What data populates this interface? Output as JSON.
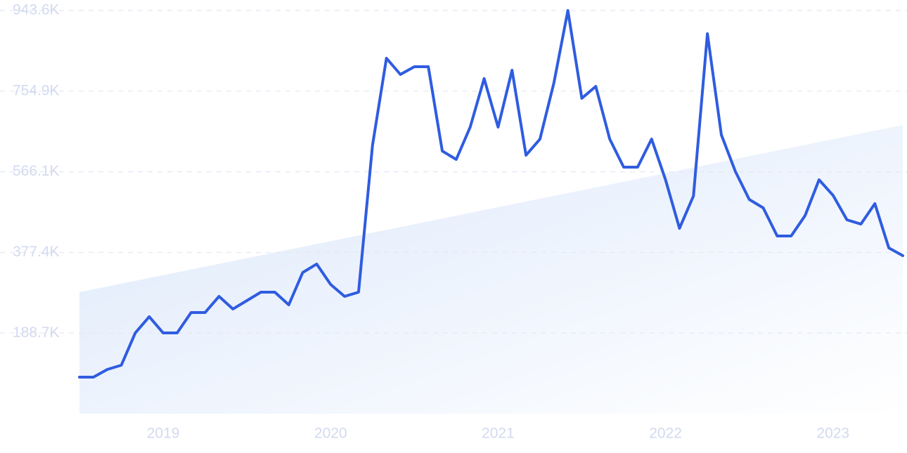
{
  "chart_data": {
    "type": "line",
    "x": [
      2018.5,
      2018.5833,
      2018.6667,
      2018.75,
      2018.8333,
      2018.9167,
      2019,
      2019.0833,
      2019.1667,
      2019.25,
      2019.3333,
      2019.4167,
      2019.5,
      2019.5833,
      2019.6667,
      2019.75,
      2019.8333,
      2019.9167,
      2020,
      2020.0833,
      2020.1667,
      2020.25,
      2020.3333,
      2020.4167,
      2020.5,
      2020.5833,
      2020.6667,
      2020.75,
      2020.8333,
      2020.9167,
      2021,
      2021.0833,
      2021.1667,
      2021.25,
      2021.3333,
      2021.4167,
      2021.5,
      2021.5833,
      2021.6667,
      2021.75,
      2021.8333,
      2021.9167,
      2022,
      2022.0833,
      2022.1667,
      2022.25,
      2022.3333,
      2022.4167,
      2022.5,
      2022.5833,
      2022.6667,
      2022.75,
      2022.8333,
      2022.9167,
      2023,
      2023.0833,
      2023.1667,
      2023.25,
      2023.3333,
      2023.4167
    ],
    "series": [
      {
        "color": "#2f5ce0",
        "values": [
          85.5,
          85.5,
          103.6,
          113.4,
          189,
          226.9,
          189,
          189,
          236.7,
          236.7,
          274.5,
          245,
          264.7,
          284.4,
          284.4,
          254.8,
          330.4,
          350.2,
          302.5,
          274.5,
          284.4,
          628,
          831.9,
          794,
          812.1,
          812.1,
          614.8,
          595.1,
          670.7,
          784.2,
          670.7,
          803.9,
          605,
          642.7,
          774.3,
          943.6,
          738.2,
          766.1,
          642.7,
          577,
          577,
          642.7,
          547.4,
          433.9,
          509.6,
          889.4,
          652.6,
          567.2,
          501.4,
          481.7,
          415.9,
          415.9,
          463.6,
          547.4,
          511.2,
          453.7,
          443.8,
          491.5,
          388,
          369.9
        ]
      }
    ],
    "trend_values": [
      284.4,
      675.6
    ],
    "xlim": [
      2018.5,
      2023.4167
    ],
    "xticks": [
      2019,
      2020,
      2021,
      2022,
      2023
    ],
    "ylim": [
      0,
      943.6
    ],
    "yticks": [
      {
        "value": 188.7,
        "label": "188.7K"
      },
      {
        "value": 377.4,
        "label": "377.4K"
      },
      {
        "value": 566.1,
        "label": "566.1K"
      },
      {
        "value": 754.9,
        "label": "754.9K"
      },
      {
        "value": 943.6,
        "label": "943.6K"
      }
    ],
    "grid": true
  }
}
